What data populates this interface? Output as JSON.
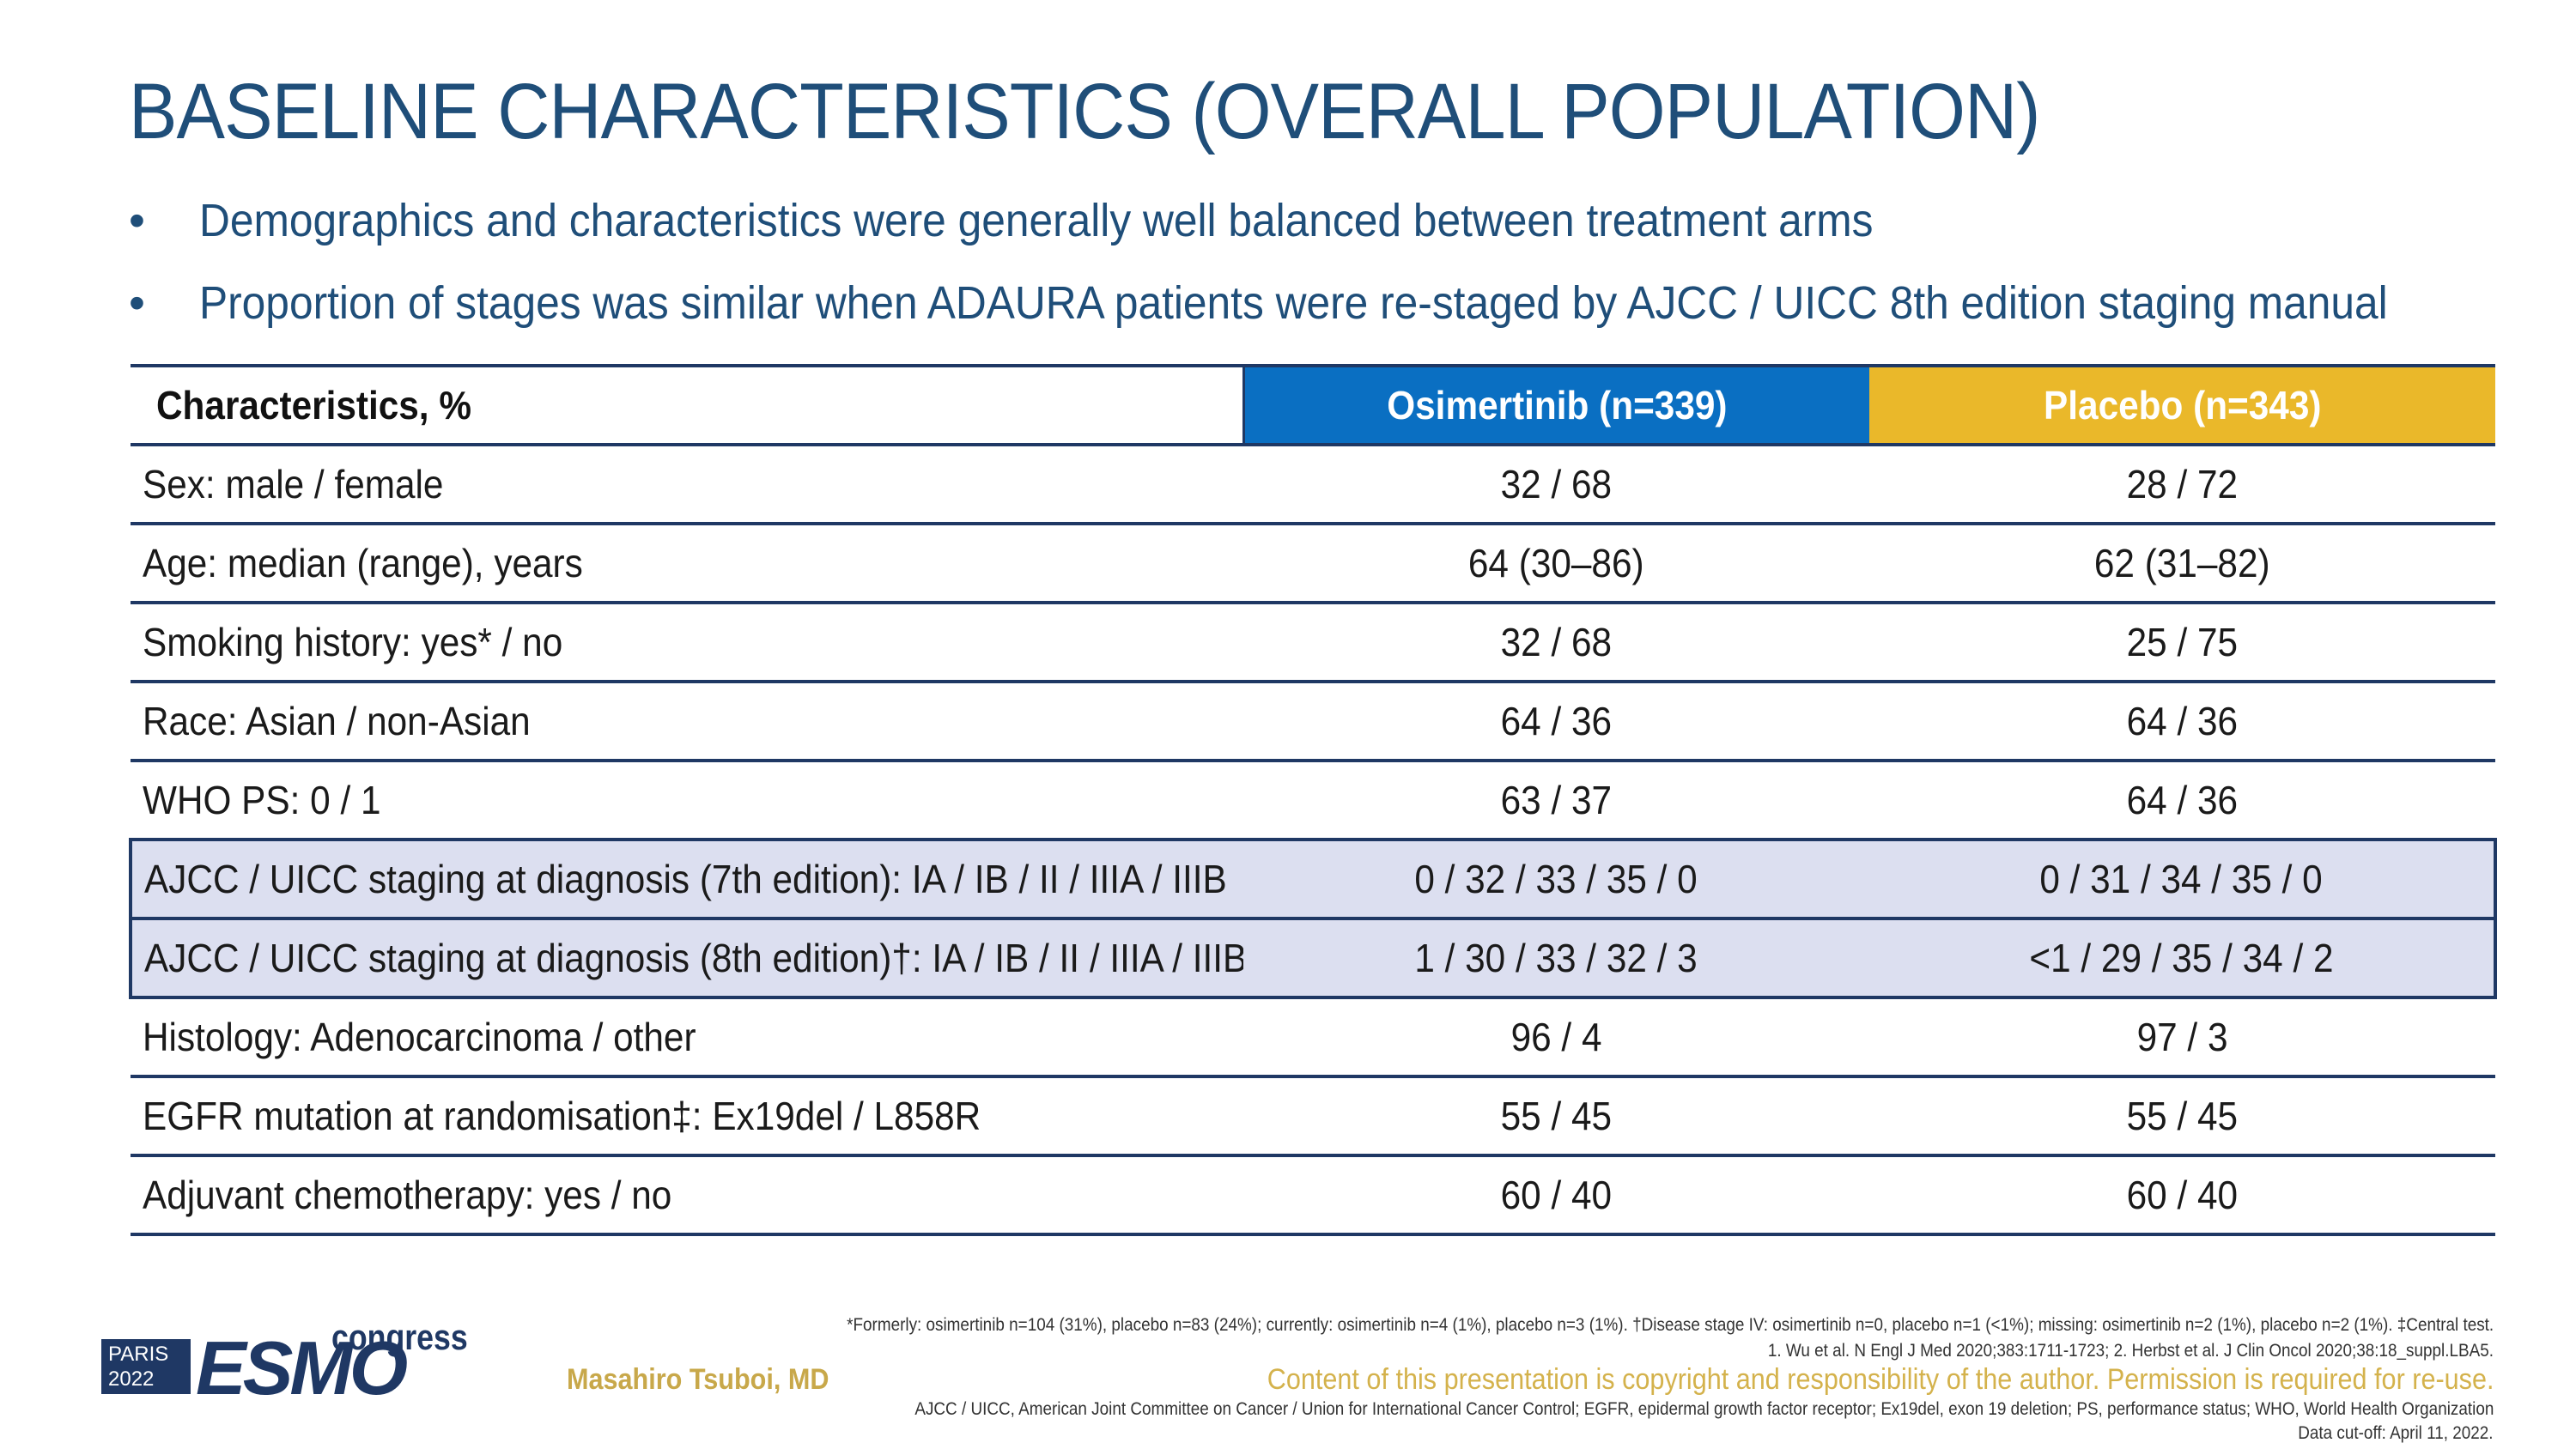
{
  "slide": {
    "title": "BASELINE CHARACTERISTICS (OVERALL POPULATION)",
    "bullet_symbol": "•",
    "bullets": [
      "Demographics and characteristics were generally well balanced between treatment arms",
      "Proportion of stages was similar when ADAURA patients were re-staged by AJCC / UICC 8th edition staging manual"
    ]
  },
  "table": {
    "headers": [
      "Characteristics, %",
      "Osimertinib (n=339)",
      "Placebo (n=343)"
    ],
    "header_colors": {
      "osimertinib": "#0a6fc2",
      "placebo": "#eab82a",
      "border": "#1f3864",
      "highlight_row": "#dcdff0"
    },
    "rows": [
      {
        "label": "Sex: male / female",
        "osimertinib": "32 / 68",
        "placebo": "28 / 72"
      },
      {
        "label": "Age: median (range), years",
        "osimertinib": "64 (30–86)",
        "placebo": "62 (31–82)"
      },
      {
        "label": "Smoking history: yes* / no",
        "osimertinib": "32 / 68",
        "placebo": "25 / 75"
      },
      {
        "label": "Race: Asian / non-Asian",
        "osimertinib": "64 / 36",
        "placebo": "64 / 36"
      },
      {
        "label": "WHO PS: 0 / 1",
        "osimertinib": "63 / 37",
        "placebo": "64 / 36"
      },
      {
        "label": "AJCC / UICC staging at diagnosis (7th edition): IA / IB / II / IIIA / IIIB",
        "osimertinib": "0 / 32 / 33 / 35 / 0",
        "placebo": "0 / 31 / 34 / 35 / 0"
      },
      {
        "label": "AJCC / UICC staging at diagnosis (8th edition)†: IA / IB / II / IIIA / IIIB",
        "osimertinib": "1 / 30 / 33 / 32 / 3",
        "placebo": "<1 / 29 / 35 / 34 / 2"
      },
      {
        "label": "Histology: Adenocarcinoma / other",
        "osimertinib": "96 / 4",
        "placebo": "97 / 3"
      },
      {
        "label": "EGFR mutation at randomisation‡: Ex19del / L858R",
        "osimertinib": "55 / 45",
        "placebo": "55 / 45"
      },
      {
        "label": "Adjuvant chemotherapy: yes / no",
        "osimertinib": "60 / 40",
        "placebo": "60 / 40"
      }
    ]
  },
  "footer": {
    "logo_city": "PARIS",
    "logo_year": "2022",
    "logo_brand": "ESMO",
    "logo_word": "congress",
    "presenter": "Masahiro Tsuboi, MD",
    "footnote_1": "*Formerly: osimertinib n=104 (31%), placebo n=83 (24%); currently: osimertinib n=4 (1%), placebo n=3 (1%). †Disease stage IV: osimertinib n=0, placebo n=1 (<1%); missing: osimertinib n=2 (1%), placebo n=2 (1%). ‡Central test.",
    "footnote_2": "1. Wu et al. N Engl J Med 2020;383:1711-1723; 2. Herbst et al. J Clin Oncol 2020;38:18_suppl.LBA5.",
    "copyright": "Content of this presentation is copyright and responsibility of the author. Permission is required for re-use.",
    "abbreviations": "AJCC / UICC, American Joint Committee on Cancer / Union for International Cancer Control; EGFR, epidermal growth factor receptor; Ex19del, exon 19 deletion; PS, performance status; WHO, World Health Organization",
    "data_cutoff": "Data cut-off: April 11, 2022."
  }
}
